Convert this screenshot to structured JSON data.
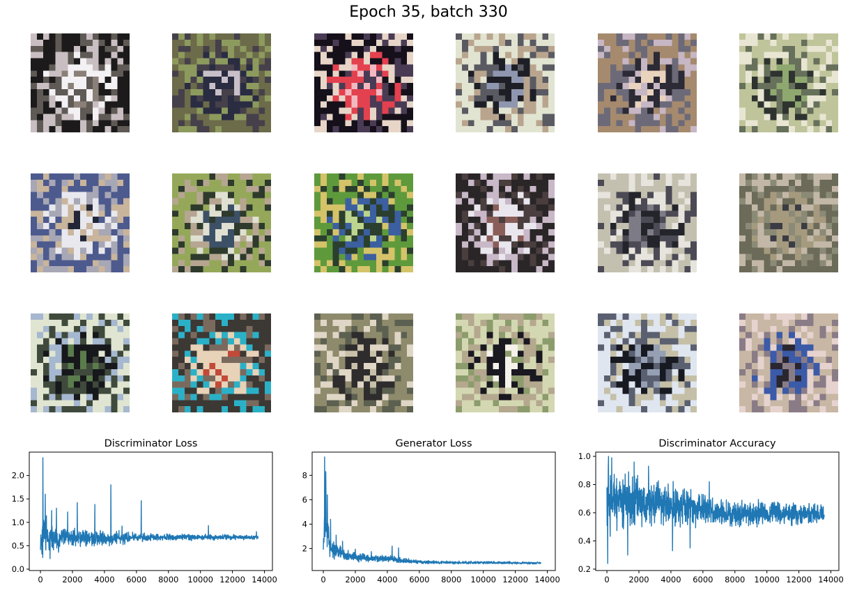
{
  "figure": {
    "title": "Epoch 35, batch 330"
  },
  "samples": [
    {
      "palette": [
        "#1c1a1a",
        "#f3f1f3",
        "#8a8078",
        "#c9bfc2",
        "#5f5a55"
      ]
    },
    {
      "palette": [
        "#6c6b4a",
        "#2a2c42",
        "#c8c0c8",
        "#8d9a5e",
        "#45404a"
      ]
    },
    {
      "palette": [
        "#15101a",
        "#e3414f",
        "#f3b9c0",
        "#e7d6c8",
        "#4a3b55"
      ]
    },
    {
      "palette": [
        "#e2e4d2",
        "#1e1f26",
        "#8f96b0",
        "#b9a58e",
        "#5a5a62"
      ]
    },
    {
      "palette": [
        "#a68a6e",
        "#2b2a35",
        "#e9d3bd",
        "#6c6a78",
        "#c7b6c4"
      ]
    },
    {
      "palette": [
        "#bfc49a",
        "#2e3330",
        "#8fa86f",
        "#e8e6d3",
        "#66705a"
      ]
    },
    {
      "palette": [
        "#4d5a8e",
        "#e8e8ee",
        "#232636",
        "#a8a7b5",
        "#c9b59c"
      ]
    },
    {
      "palette": [
        "#95a85a",
        "#dfe0d2",
        "#3c5066",
        "#b6a691",
        "#2d3a2c"
      ]
    },
    {
      "palette": [
        "#5e9a3c",
        "#3b5fa0",
        "#bcd48e",
        "#d5c36a",
        "#2b3f2e"
      ]
    },
    {
      "palette": [
        "#2a2628",
        "#eae6ee",
        "#8a5e58",
        "#c8b8c8",
        "#4a3e3e"
      ]
    },
    {
      "palette": [
        "#c4c0b0",
        "#23252b",
        "#7d7c86",
        "#e6e4dc",
        "#4c4a55"
      ]
    },
    {
      "palette": [
        "#6c6a58",
        "#a69a7e",
        "#3a3b44",
        "#c3b8a8",
        "#8a8a76"
      ]
    },
    {
      "palette": [
        "#dfe5d0",
        "#17181c",
        "#5b7c4c",
        "#a6b7d0",
        "#3f4a3c"
      ]
    },
    {
      "palette": [
        "#3c3834",
        "#e8d2b8",
        "#c24a38",
        "#2bb1c7",
        "#7a6a5e"
      ]
    },
    {
      "palette": [
        "#8e8a6c",
        "#2e2c2c",
        "#c8c0a8",
        "#5c6050",
        "#e0d6c6"
      ]
    },
    {
      "palette": [
        "#d4d8b2",
        "#1a1820",
        "#f4f2ea",
        "#b4a88e",
        "#8c9c6c"
      ]
    },
    {
      "palette": [
        "#dfe6f0",
        "#181a22",
        "#96a0b4",
        "#c4bfa6",
        "#5a6070"
      ]
    },
    {
      "palette": [
        "#c8b7a4",
        "#3b5aa8",
        "#2a2630",
        "#e6d2ce",
        "#8a7c86"
      ]
    }
  ],
  "chart_data": [
    {
      "type": "line",
      "title": "Discriminator Loss",
      "xlim": [
        -700,
        14500
      ],
      "ylim": [
        -0.03,
        2.5
      ],
      "x_ticks": [
        0,
        2000,
        4000,
        6000,
        8000,
        10000,
        12000,
        14000
      ],
      "y_ticks": [
        0.0,
        0.5,
        1.0,
        1.5,
        2.0
      ],
      "y_tick_labels": [
        "0.0",
        "0.5",
        "1.0",
        "1.5",
        "2.0"
      ],
      "color": "#1f77b4",
      "n_points": 13600,
      "envelope": {
        "x": [
          0,
          200,
          500,
          1000,
          2000,
          3000,
          4000,
          5000,
          6000,
          7000,
          8000,
          10000,
          12000,
          13600
        ],
        "low": [
          0.05,
          0.1,
          0.15,
          0.3,
          0.4,
          0.45,
          0.45,
          0.5,
          0.55,
          0.58,
          0.6,
          0.6,
          0.61,
          0.62
        ],
        "high": [
          0.9,
          1.3,
          1.1,
          1.0,
          0.95,
          0.9,
          0.85,
          0.85,
          0.8,
          0.78,
          0.77,
          0.76,
          0.75,
          0.74
        ]
      },
      "spikes": [
        [
          150,
          2.38
        ],
        [
          300,
          1.6
        ],
        [
          700,
          1.25
        ],
        [
          1000,
          1.3
        ],
        [
          1700,
          1.22
        ],
        [
          2300,
          1.42
        ],
        [
          3400,
          1.38
        ],
        [
          4400,
          1.8
        ],
        [
          5100,
          0.92
        ],
        [
          6300,
          1.46
        ],
        [
          10500,
          0.93
        ],
        [
          13500,
          0.8
        ]
      ]
    },
    {
      "type": "line",
      "title": "Generator Loss",
      "xlim": [
        -700,
        14500
      ],
      "ylim": [
        0.2,
        9.9
      ],
      "x_ticks": [
        0,
        2000,
        4000,
        6000,
        8000,
        10000,
        12000,
        14000
      ],
      "y_ticks": [
        2,
        4,
        6,
        8
      ],
      "y_tick_labels": [
        "2",
        "4",
        "6",
        "8"
      ],
      "color": "#1f77b4",
      "n_points": 13600,
      "envelope": {
        "x": [
          0,
          100,
          200,
          400,
          700,
          1000,
          1500,
          2000,
          3000,
          4000,
          5000,
          6000,
          8000,
          10000,
          12000,
          13600
        ],
        "low": [
          0.6,
          1.5,
          1.5,
          1.0,
          0.9,
          0.9,
          0.8,
          0.8,
          0.8,
          0.8,
          0.7,
          0.7,
          0.7,
          0.7,
          0.7,
          0.7
        ],
        "high": [
          3.0,
          7.5,
          6.0,
          3.5,
          2.8,
          2.5,
          2.0,
          1.8,
          1.6,
          1.5,
          1.3,
          1.1,
          1.0,
          1.0,
          0.95,
          0.95
        ]
      },
      "spikes": [
        [
          80,
          9.5
        ],
        [
          150,
          8.3
        ],
        [
          250,
          6.4
        ],
        [
          450,
          4.4
        ],
        [
          800,
          3.1
        ],
        [
          1200,
          2.6
        ],
        [
          2000,
          1.95
        ],
        [
          3000,
          1.75
        ],
        [
          4300,
          2.2
        ],
        [
          4700,
          2.05
        ]
      ]
    },
    {
      "type": "line",
      "title": "Discriminator Accuracy",
      "xlim": [
        -700,
        14500
      ],
      "ylim": [
        0.19,
        1.03
      ],
      "x_ticks": [
        0,
        2000,
        4000,
        6000,
        8000,
        10000,
        12000,
        14000
      ],
      "y_ticks": [
        0.2,
        0.4,
        0.6,
        0.8,
        1.0
      ],
      "y_tick_labels": [
        "0.2",
        "0.4",
        "0.6",
        "0.8",
        "1.0"
      ],
      "color": "#1f77b4",
      "n_points": 13600,
      "envelope": {
        "x": [
          0,
          500,
          1000,
          2000,
          3000,
          4000,
          5000,
          6000,
          7000,
          8000,
          10000,
          12000,
          13600
        ],
        "low": [
          0.35,
          0.42,
          0.42,
          0.42,
          0.44,
          0.45,
          0.46,
          0.46,
          0.47,
          0.47,
          0.48,
          0.48,
          0.5
        ],
        "high": [
          0.99,
          0.97,
          0.95,
          0.93,
          0.88,
          0.86,
          0.83,
          0.78,
          0.74,
          0.72,
          0.71,
          0.7,
          0.68
        ]
      },
      "spikes": [
        [
          50,
          0.24
        ],
        [
          100,
          1.0
        ],
        [
          300,
          0.99
        ],
        [
          1700,
          0.96
        ],
        [
          1300,
          0.3
        ],
        [
          4100,
          0.33
        ],
        [
          5200,
          0.35
        ],
        [
          2600,
          0.93
        ],
        [
          6400,
          0.82
        ]
      ]
    }
  ]
}
